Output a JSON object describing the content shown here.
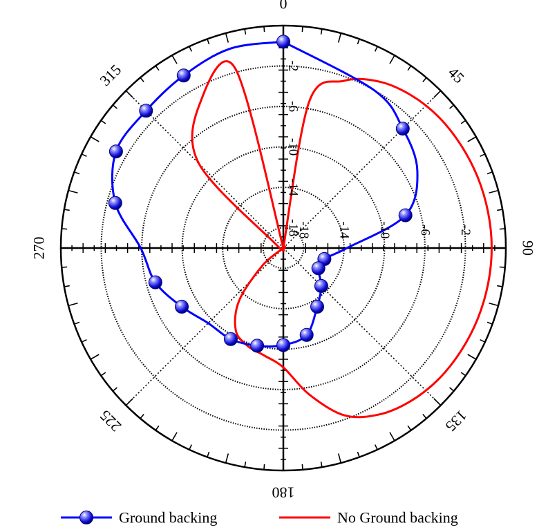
{
  "chart_data": {
    "type": "polar-line",
    "title": "",
    "angular_unit": "degrees",
    "angular_direction": "clockwise",
    "zero_location": "top",
    "angular_ticks": [
      "0",
      "45",
      "90",
      "135",
      "180",
      "225",
      "270",
      "315"
    ],
    "radial_range": [
      -20,
      2
    ],
    "radial_rings": [
      -18,
      -14,
      -10,
      -6,
      -2
    ],
    "radial_tick_labels_upper": [
      "-2",
      "-6",
      "-10",
      "-14",
      "-18"
    ],
    "radial_tick_labels_right": [
      "-18",
      "-14",
      "-10",
      "-6",
      "-2"
    ],
    "grid": true,
    "legend_position": "bottom",
    "series": [
      {
        "name": "Ground backing",
        "color": "#0000ff",
        "marker": "sphere",
        "points": [
          {
            "angle": 0,
            "value": 0.4
          },
          {
            "angle": 30,
            "value": -2
          },
          {
            "angle": 45,
            "value": -3.3
          },
          {
            "angle": 60,
            "value": -4.7
          },
          {
            "angle": 75,
            "value": -7.5
          },
          {
            "angle": 90,
            "value": -13.7
          },
          {
            "angle": 105,
            "value": -15.8
          },
          {
            "angle": 120,
            "value": -16
          },
          {
            "angle": 135,
            "value": -14.7
          },
          {
            "angle": 150,
            "value": -13.3
          },
          {
            "angle": 165,
            "value": -11.1
          },
          {
            "angle": 180,
            "value": -10.4
          },
          {
            "angle": 195,
            "value": -10
          },
          {
            "angle": 210,
            "value": -9.6
          },
          {
            "angle": 225,
            "value": -9.5
          },
          {
            "angle": 240,
            "value": -8.4
          },
          {
            "angle": 255,
            "value": -6.9
          },
          {
            "angle": 270,
            "value": -5.9
          },
          {
            "angle": 285,
            "value": -2.8
          },
          {
            "angle": 300,
            "value": -0.9
          },
          {
            "angle": 315,
            "value": -0.8
          },
          {
            "angle": 330,
            "value": -0.3
          },
          {
            "angle": 345,
            "value": 0.4
          },
          {
            "angle": 360,
            "value": 0.4
          }
        ],
        "marker_angles": [
          0,
          45,
          75,
          105,
          120,
          135,
          150,
          165,
          180,
          195,
          210,
          240,
          255,
          285,
          300,
          315,
          330
        ]
      },
      {
        "name": "No Ground backing",
        "color": "#ff0000",
        "marker": "none",
        "points": [
          {
            "angle": 0,
            "value": -20
          },
          {
            "angle": 10,
            "value": -5.3
          },
          {
            "angle": 20,
            "value": -2.4
          },
          {
            "angle": 30,
            "value": -1
          },
          {
            "angle": 40,
            "value": -0.3
          },
          {
            "angle": 50,
            "value": 0.1
          },
          {
            "angle": 60,
            "value": 0.3
          },
          {
            "angle": 70,
            "value": 0.45
          },
          {
            "angle": 80,
            "value": 0.55
          },
          {
            "angle": 90,
            "value": 0.6
          },
          {
            "angle": 100,
            "value": 0.55
          },
          {
            "angle": 110,
            "value": 0.45
          },
          {
            "angle": 120,
            "value": 0.3
          },
          {
            "angle": 130,
            "value": 0.1
          },
          {
            "angle": 140,
            "value": -0.3
          },
          {
            "angle": 150,
            "value": -1
          },
          {
            "angle": 160,
            "value": -2.4
          },
          {
            "angle": 170,
            "value": -5.3
          },
          {
            "angle": 180,
            "value": -8.2
          },
          {
            "angle": 190,
            "value": -9.2
          },
          {
            "angle": 200,
            "value": -9.7
          },
          {
            "angle": 210,
            "value": -10.6
          },
          {
            "angle": 220,
            "value": -13.2
          },
          {
            "angle": 230,
            "value": -17.3
          },
          {
            "angle": 240,
            "value": -20
          },
          {
            "angle": 270,
            "value": -20
          },
          {
            "angle": 300,
            "value": -19
          },
          {
            "angle": 315,
            "value": -8.2
          },
          {
            "angle": 330,
            "value": -3.5
          },
          {
            "angle": 345,
            "value": -1.6
          },
          {
            "angle": 360,
            "value": -20
          }
        ]
      }
    ]
  },
  "legend": {
    "items": [
      {
        "label": "Ground backing",
        "color": "#0000ff"
      },
      {
        "label": "No Ground backing",
        "color": "#ff0000"
      }
    ]
  }
}
